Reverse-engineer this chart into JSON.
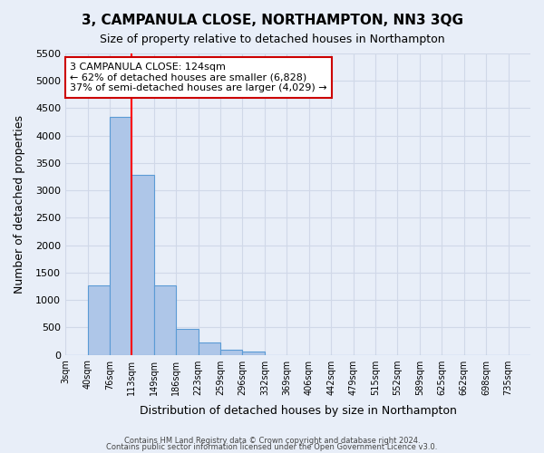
{
  "title": "3, CAMPANULA CLOSE, NORTHAMPTON, NN3 3QG",
  "subtitle": "Size of property relative to detached houses in Northampton",
  "xlabel": "Distribution of detached houses by size in Northampton",
  "ylabel": "Number of detached properties",
  "footer_line1": "Contains HM Land Registry data © Crown copyright and database right 2024.",
  "footer_line2": "Contains public sector information licensed under the Open Government Licence v3.0.",
  "bin_labels": [
    "3sqm",
    "40sqm",
    "76sqm",
    "113sqm",
    "149sqm",
    "186sqm",
    "223sqm",
    "259sqm",
    "296sqm",
    "332sqm",
    "369sqm",
    "406sqm",
    "442sqm",
    "479sqm",
    "515sqm",
    "552sqm",
    "589sqm",
    "625sqm",
    "662sqm",
    "698sqm",
    "735sqm"
  ],
  "bar_values": [
    0,
    1270,
    4350,
    3280,
    1270,
    480,
    230,
    90,
    55,
    0,
    0,
    0,
    0,
    0,
    0,
    0,
    0,
    0,
    0,
    0,
    0
  ],
  "bar_color": "#aec6e8",
  "bar_edge_color": "#5b9bd5",
  "ylim": [
    0,
    5500
  ],
  "yticks": [
    0,
    500,
    1000,
    1500,
    2000,
    2500,
    3000,
    3500,
    4000,
    4500,
    5000,
    5500
  ],
  "red_line_x": 3.0,
  "annotation_title": "3 CAMPANULA CLOSE: 124sqm",
  "annotation_line1": "← 62% of detached houses are smaller (6,828)",
  "annotation_line2": "37% of semi-detached houses are larger (4,029) →",
  "annotation_box_color": "#ffffff",
  "annotation_box_edge_color": "#cc0000",
  "grid_color": "#d0d8e8",
  "background_color": "#e8eef8"
}
